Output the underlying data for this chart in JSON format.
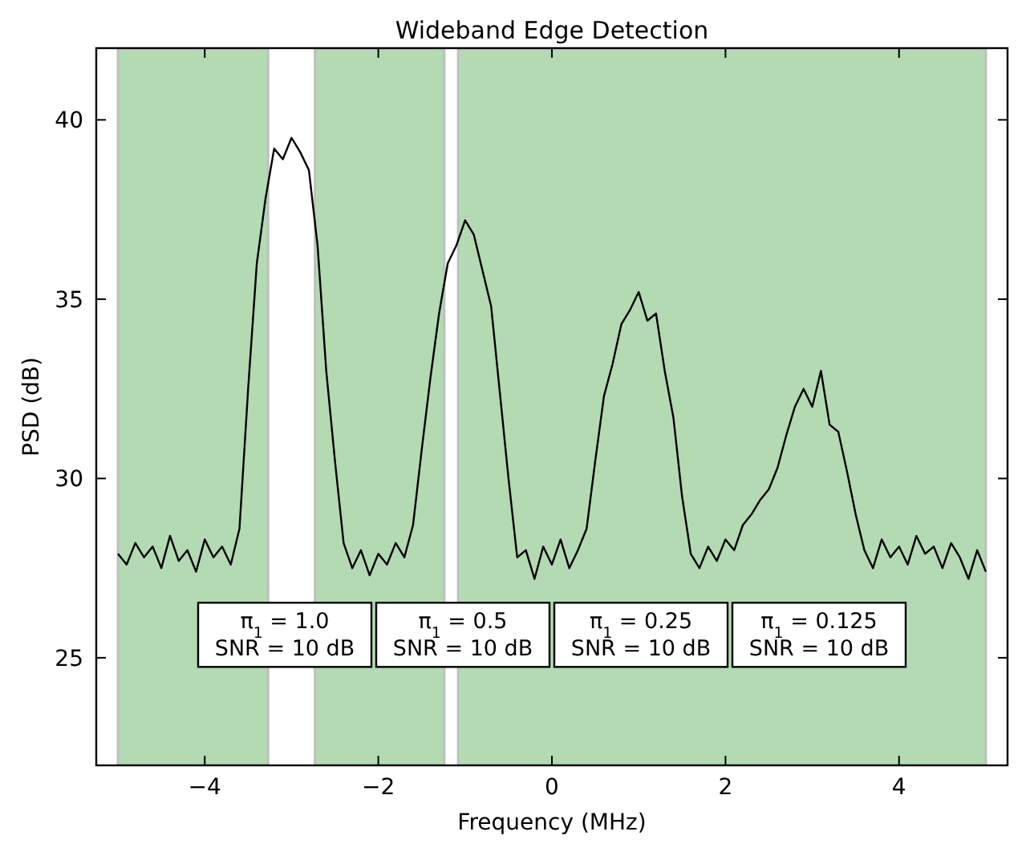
{
  "chart_data": {
    "type": "line",
    "title": "Wideband Edge Detection",
    "xlabel": "Frequency (MHz)",
    "ylabel": "PSD (dB)",
    "x": [
      -5.0,
      -4.9,
      -4.8,
      -4.7,
      -4.6,
      -4.5,
      -4.4,
      -4.3,
      -4.2,
      -4.1,
      -4.0,
      -3.9,
      -3.8,
      -3.7,
      -3.6,
      -3.5,
      -3.4,
      -3.3,
      -3.2,
      -3.1,
      -3.0,
      -2.9,
      -2.8,
      -2.7,
      -2.6,
      -2.5,
      -2.4,
      -2.3,
      -2.2,
      -2.1,
      -2.0,
      -1.9,
      -1.8,
      -1.7,
      -1.6,
      -1.5,
      -1.4,
      -1.3,
      -1.2,
      -1.1,
      -1.0,
      -0.9,
      -0.8,
      -0.7,
      -0.6,
      -0.5,
      -0.4,
      -0.3,
      -0.2,
      -0.1,
      0.0,
      0.1,
      0.2,
      0.3,
      0.4,
      0.5,
      0.6,
      0.7,
      0.8,
      0.9,
      1.0,
      1.1,
      1.2,
      1.3,
      1.4,
      1.5,
      1.6,
      1.7,
      1.8,
      1.9,
      2.0,
      2.1,
      2.2,
      2.3,
      2.4,
      2.5,
      2.6,
      2.7,
      2.8,
      2.9,
      3.0,
      3.1,
      3.2,
      3.3,
      3.4,
      3.5,
      3.6,
      3.7,
      3.8,
      3.9,
      4.0,
      4.1,
      4.2,
      4.3,
      4.4,
      4.5,
      4.6,
      4.7,
      4.8,
      4.9,
      5.0
    ],
    "series": [
      {
        "color": "#000000",
        "values": [
          27.9,
          27.6,
          28.2,
          27.8,
          28.1,
          27.5,
          28.4,
          27.7,
          28.0,
          27.4,
          28.3,
          27.8,
          28.1,
          27.6,
          28.6,
          32.5,
          36.0,
          37.8,
          39.2,
          38.9,
          39.5,
          39.1,
          38.6,
          36.5,
          33.0,
          30.5,
          28.2,
          27.5,
          28.0,
          27.3,
          27.9,
          27.6,
          28.2,
          27.8,
          28.7,
          30.8,
          32.8,
          34.6,
          36.0,
          36.5,
          37.2,
          36.8,
          35.8,
          34.8,
          32.4,
          30.0,
          27.8,
          28.0,
          27.2,
          28.1,
          27.6,
          28.3,
          27.5,
          28.0,
          28.6,
          30.5,
          32.3,
          33.2,
          34.3,
          34.7,
          35.2,
          34.4,
          34.6,
          33.0,
          31.7,
          29.5,
          27.9,
          27.5,
          28.1,
          27.7,
          28.3,
          28.0,
          28.7,
          29.0,
          29.4,
          29.7,
          30.3,
          31.2,
          32.0,
          32.5,
          32.0,
          33.0,
          31.5,
          31.3,
          30.2,
          29.0,
          28.0,
          27.5,
          28.3,
          27.8,
          28.1,
          27.6,
          28.4,
          27.9,
          28.1,
          27.5,
          28.2,
          27.8,
          27.2,
          28.0,
          27.4
        ]
      }
    ],
    "xlim": [
      -5.25,
      5.25
    ],
    "ylim": [
      22,
      42
    ],
    "xticks": [
      {
        "value": -4,
        "label": "−4"
      },
      {
        "value": -2,
        "label": "−2"
      },
      0,
      2,
      4
    ],
    "yticks": [
      25,
      30,
      35,
      40
    ],
    "bands": [
      {
        "axis": "x",
        "from": -5.0,
        "to": -3.27,
        "color": "#b3dab3"
      },
      {
        "axis": "x",
        "from": -2.73,
        "to": -1.24,
        "color": "#b3dab3"
      },
      {
        "axis": "x",
        "from": -1.08,
        "to": 5.0,
        "color": "#b3dab3"
      }
    ],
    "annotations": [
      "π$_{1}$ = 1.0\nSNR = 10 dB",
      "π$_{1}$ = 0.5\nSNR = 10 dB",
      "π$_{1}$ = 0.25\nSNR = 10 dB",
      "π$_{1}$ = 0.125\nSNR = 10 dB"
    ],
    "grid": false,
    "marker": "none",
    "line_style": "solid"
  }
}
